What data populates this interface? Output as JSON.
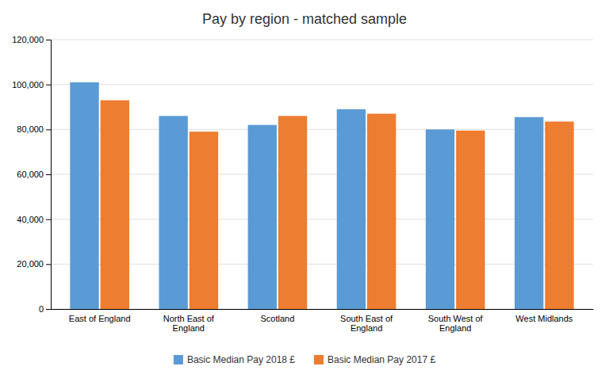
{
  "chart_data": {
    "type": "bar",
    "title": "Pay by region - matched sample",
    "categories": [
      "East of England",
      "North East of\nEngland",
      "Scotland",
      "South East of\nEngland",
      "South West of\nEngland",
      "West Midlands"
    ],
    "series": [
      {
        "name": "Basic Median Pay 2018 £",
        "color": "#5B9BD5",
        "values": [
          101000,
          86000,
          82000,
          89000,
          80000,
          85500
        ]
      },
      {
        "name": "Basic Median Pay 2017 £",
        "color": "#ED7D31",
        "values": [
          93000,
          79000,
          86000,
          87000,
          79500,
          83500
        ]
      }
    ],
    "ylim": [
      0,
      120000
    ],
    "yticks": [
      0,
      {
        "value": 20000,
        "label": "20,000"
      },
      {
        "value": 40000,
        "label": "40,000"
      },
      {
        "value": 60000,
        "label": "60,000"
      },
      {
        "value": 80000,
        "label": "80,000"
      },
      {
        "value": 100000,
        "label": "100,000"
      },
      {
        "value": 120000,
        "label": "120,000"
      }
    ],
    "grid": true,
    "legend": "bottom"
  }
}
